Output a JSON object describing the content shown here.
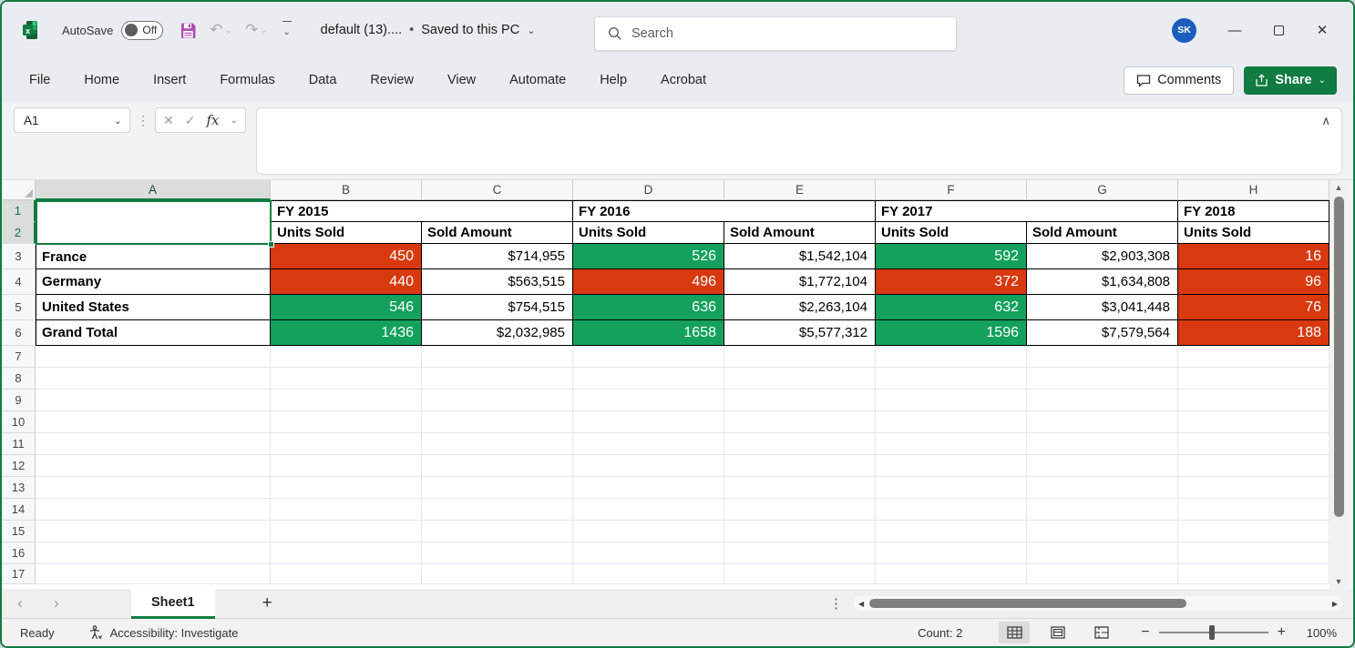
{
  "window": {
    "autosave_label": "AutoSave",
    "autosave_state": "Off",
    "doc_title": "default (13)....",
    "title_separator": "•",
    "saved_status": "Saved to this PC"
  },
  "search": {
    "placeholder": "Search"
  },
  "avatar": {
    "initials": "SK"
  },
  "menu": {
    "items": [
      "File",
      "Home",
      "Insert",
      "Formulas",
      "Data",
      "Review",
      "View",
      "Automate",
      "Help",
      "Acrobat"
    ]
  },
  "actions": {
    "comments_label": "Comments",
    "share_label": "Share"
  },
  "formula_bar": {
    "name_box": "A1",
    "fx_label": "fx",
    "formula_value": ""
  },
  "grid": {
    "column_headers": [
      "A",
      "B",
      "C",
      "D",
      "E",
      "F",
      "G",
      "H"
    ],
    "selected_column": "A",
    "selected_rows": [
      1,
      2
    ],
    "visible_row_count": 17,
    "year_groups": [
      {
        "label": "FY 2015",
        "span": 2
      },
      {
        "label": "FY 2016",
        "span": 2
      },
      {
        "label": "FY 2017",
        "span": 2
      },
      {
        "label": "FY 2018",
        "span": 1
      }
    ],
    "sub_headers": [
      "Units Sold",
      "Sold Amount",
      "Units Sold",
      "Sold Amount",
      "Units Sold",
      "Sold Amount",
      "Units Sold"
    ],
    "data_rows": [
      {
        "label": "France",
        "cells": [
          {
            "v": "450",
            "bg": "negative"
          },
          {
            "v": "$714,955"
          },
          {
            "v": "526",
            "bg": "positive"
          },
          {
            "v": "$1,542,104"
          },
          {
            "v": "592",
            "bg": "positive"
          },
          {
            "v": "$2,903,308"
          },
          {
            "v": "16",
            "bg": "negative"
          }
        ]
      },
      {
        "label": "Germany",
        "cells": [
          {
            "v": "440",
            "bg": "negative"
          },
          {
            "v": "$563,515"
          },
          {
            "v": "496",
            "bg": "negative"
          },
          {
            "v": "$1,772,104"
          },
          {
            "v": "372",
            "bg": "negative"
          },
          {
            "v": "$1,634,808"
          },
          {
            "v": "96",
            "bg": "negative"
          }
        ]
      },
      {
        "label": "United States",
        "cells": [
          {
            "v": "546",
            "bg": "positive"
          },
          {
            "v": "$754,515"
          },
          {
            "v": "636",
            "bg": "positive"
          },
          {
            "v": "$2,263,104"
          },
          {
            "v": "632",
            "bg": "positive"
          },
          {
            "v": "$3,041,448"
          },
          {
            "v": "76",
            "bg": "negative"
          }
        ]
      },
      {
        "label": "Grand Total",
        "cells": [
          {
            "v": "1436",
            "bg": "positive"
          },
          {
            "v": "$2,032,985"
          },
          {
            "v": "1658",
            "bg": "positive"
          },
          {
            "v": "$5,577,312"
          },
          {
            "v": "1596",
            "bg": "positive"
          },
          {
            "v": "$7,579,564"
          },
          {
            "v": "188",
            "bg": "negative"
          }
        ]
      }
    ]
  },
  "colors": {
    "positive": "#14A15D",
    "negative": "#D8390F",
    "accent_green": "#107C41",
    "avatar_blue": "#1B5EBE",
    "save_icon_purple": "#AE4FB0"
  },
  "sheet_tabs": {
    "active_label": "Sheet1"
  },
  "status_bar": {
    "mode": "Ready",
    "accessibility": "Accessibility: Investigate",
    "count": "Count: 2",
    "zoom_level": "100%"
  },
  "icons": {
    "chevron_down": "⌄",
    "collapse_up": "∧",
    "dots_vertical": "⋮",
    "undo": "↶",
    "redo": "↷",
    "cancel": "✕",
    "confirm": "✓",
    "nav_prev": "‹",
    "nav_next": "›",
    "add_sheet": "+",
    "scroll_left": "◀",
    "scroll_right": "▶",
    "scroll_up": "▲",
    "scroll_down": "▼",
    "zoom_minus": "−",
    "zoom_plus": "+",
    "win_minimize": "—",
    "win_close": "✕"
  }
}
